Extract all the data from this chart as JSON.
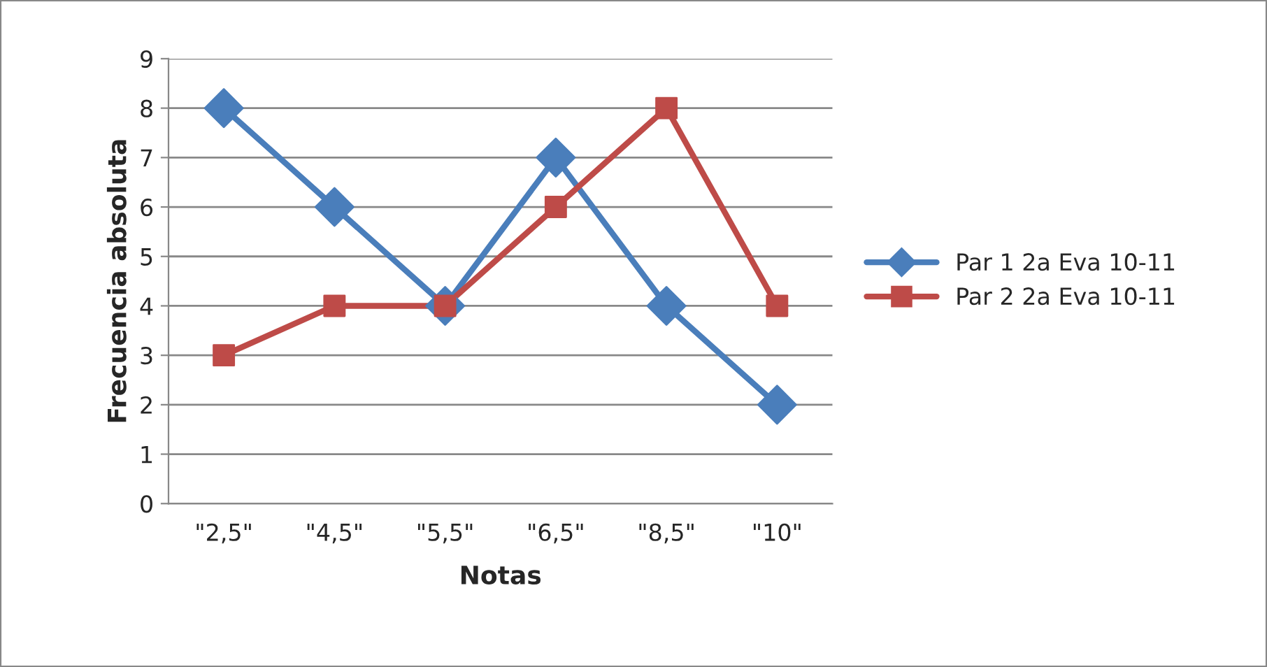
{
  "chart_data": {
    "type": "line",
    "xlabel": "Notas",
    "ylabel": "Frecuencia absoluta",
    "categories": [
      "\"2,5\"",
      "\"4,5\"",
      "\"5,5\"",
      "\"6,5\"",
      "\"8,5\"",
      "\"10\""
    ],
    "series": [
      {
        "name": "Par 1 2a Eva 10-11",
        "color": "#4a7ebb",
        "marker": "diamond",
        "values": [
          8,
          6,
          4,
          7,
          4,
          2
        ]
      },
      {
        "name": "Par 2 2a Eva 10-11",
        "color": "#be4b48",
        "marker": "square",
        "values": [
          3,
          4,
          4,
          6,
          8,
          4
        ]
      }
    ],
    "ylim": [
      0,
      9
    ],
    "yticks": [
      0,
      1,
      2,
      3,
      4,
      5,
      6,
      7,
      8,
      9
    ],
    "grid": "y",
    "legend": "right",
    "line_style": "solid"
  }
}
